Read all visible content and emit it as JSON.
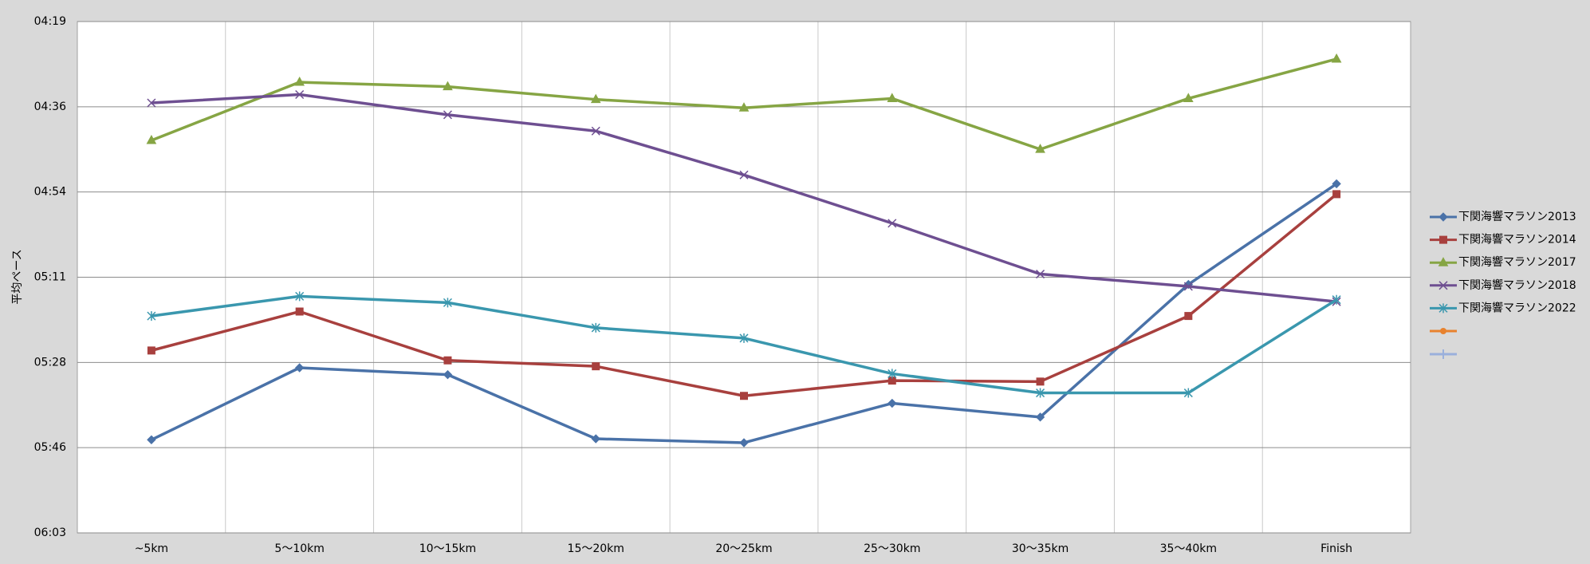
{
  "chart_data": {
    "type": "line",
    "y_label": "平均ペース",
    "categories": [
      "~5km",
      "5～10km",
      "10～15km",
      "15～20km",
      "20～25km",
      "25～30km",
      "30～35km",
      "35～40km",
      "Finish"
    ],
    "ylim": [
      259.2,
      362.88
    ],
    "y_inverted": true,
    "yticks": [
      {
        "value": 259.2,
        "label": "04:19"
      },
      {
        "value": 276.48,
        "label": "04:36"
      },
      {
        "value": 293.76,
        "label": "04:54"
      },
      {
        "value": 311.04,
        "label": "05:11"
      },
      {
        "value": 328.32,
        "label": "05:28"
      },
      {
        "value": 345.6,
        "label": "05:46"
      },
      {
        "value": 362.88,
        "label": "06:03"
      }
    ],
    "grid": true,
    "legend": "right",
    "series": [
      {
        "name": "下関海響マラソン2013",
        "color": "#4a72a8",
        "marker": "diamond",
        "values": [
          344.0,
          329.4,
          330.8,
          343.8,
          344.6,
          336.6,
          339.4,
          312.5,
          292.1
        ]
      },
      {
        "name": "下関海響マラソン2014",
        "color": "#a8403e",
        "marker": "square",
        "values": [
          325.9,
          318.0,
          327.9,
          329.1,
          335.1,
          332.0,
          332.2,
          318.9,
          294.2
        ]
      },
      {
        "name": "下関海響マラソン2017",
        "color": "#86a544",
        "marker": "triangle",
        "values": [
          283.3,
          271.5,
          272.4,
          275.0,
          276.7,
          274.8,
          285.1,
          274.8,
          266.8
        ]
      },
      {
        "name": "下関海響マラソン2018",
        "color": "#6e4f91",
        "marker": "x",
        "values": [
          275.7,
          274.0,
          278.1,
          281.4,
          290.3,
          300.1,
          310.4,
          312.9,
          316.0
        ]
      },
      {
        "name": "下関海響マラソン2022",
        "color": "#3a97ae",
        "marker": "star",
        "values": [
          318.9,
          314.9,
          316.2,
          321.3,
          323.4,
          330.6,
          334.5,
          334.5,
          315.6
        ]
      }
    ]
  }
}
